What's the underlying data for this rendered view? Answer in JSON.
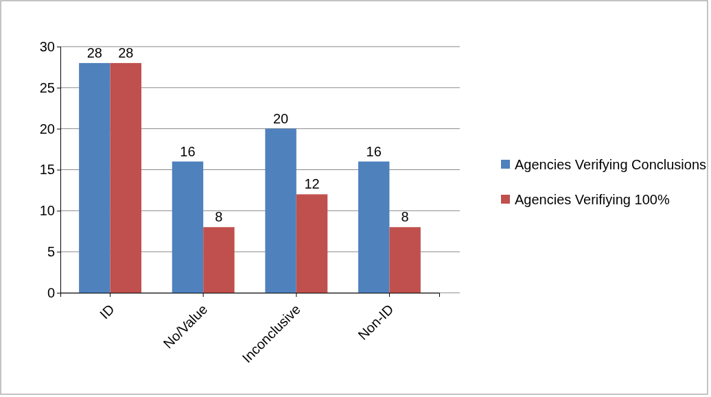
{
  "chart_data": {
    "type": "bar",
    "categories": [
      "ID",
      "No/Value",
      "Inconclusive",
      "Non-ID"
    ],
    "series": [
      {
        "name": "Agencies Verifying Conclusions",
        "color": "#4f81bd",
        "values": [
          28,
          16,
          20,
          16
        ]
      },
      {
        "name": "Agencies Verifiying 100%",
        "color": "#c0504d",
        "values": [
          28,
          8,
          12,
          8
        ]
      }
    ],
    "ylim": [
      0,
      30
    ],
    "yticks": [
      0,
      5,
      10,
      15,
      20,
      25,
      30
    ],
    "grid": "y",
    "legend": "right",
    "data_labels": true
  }
}
